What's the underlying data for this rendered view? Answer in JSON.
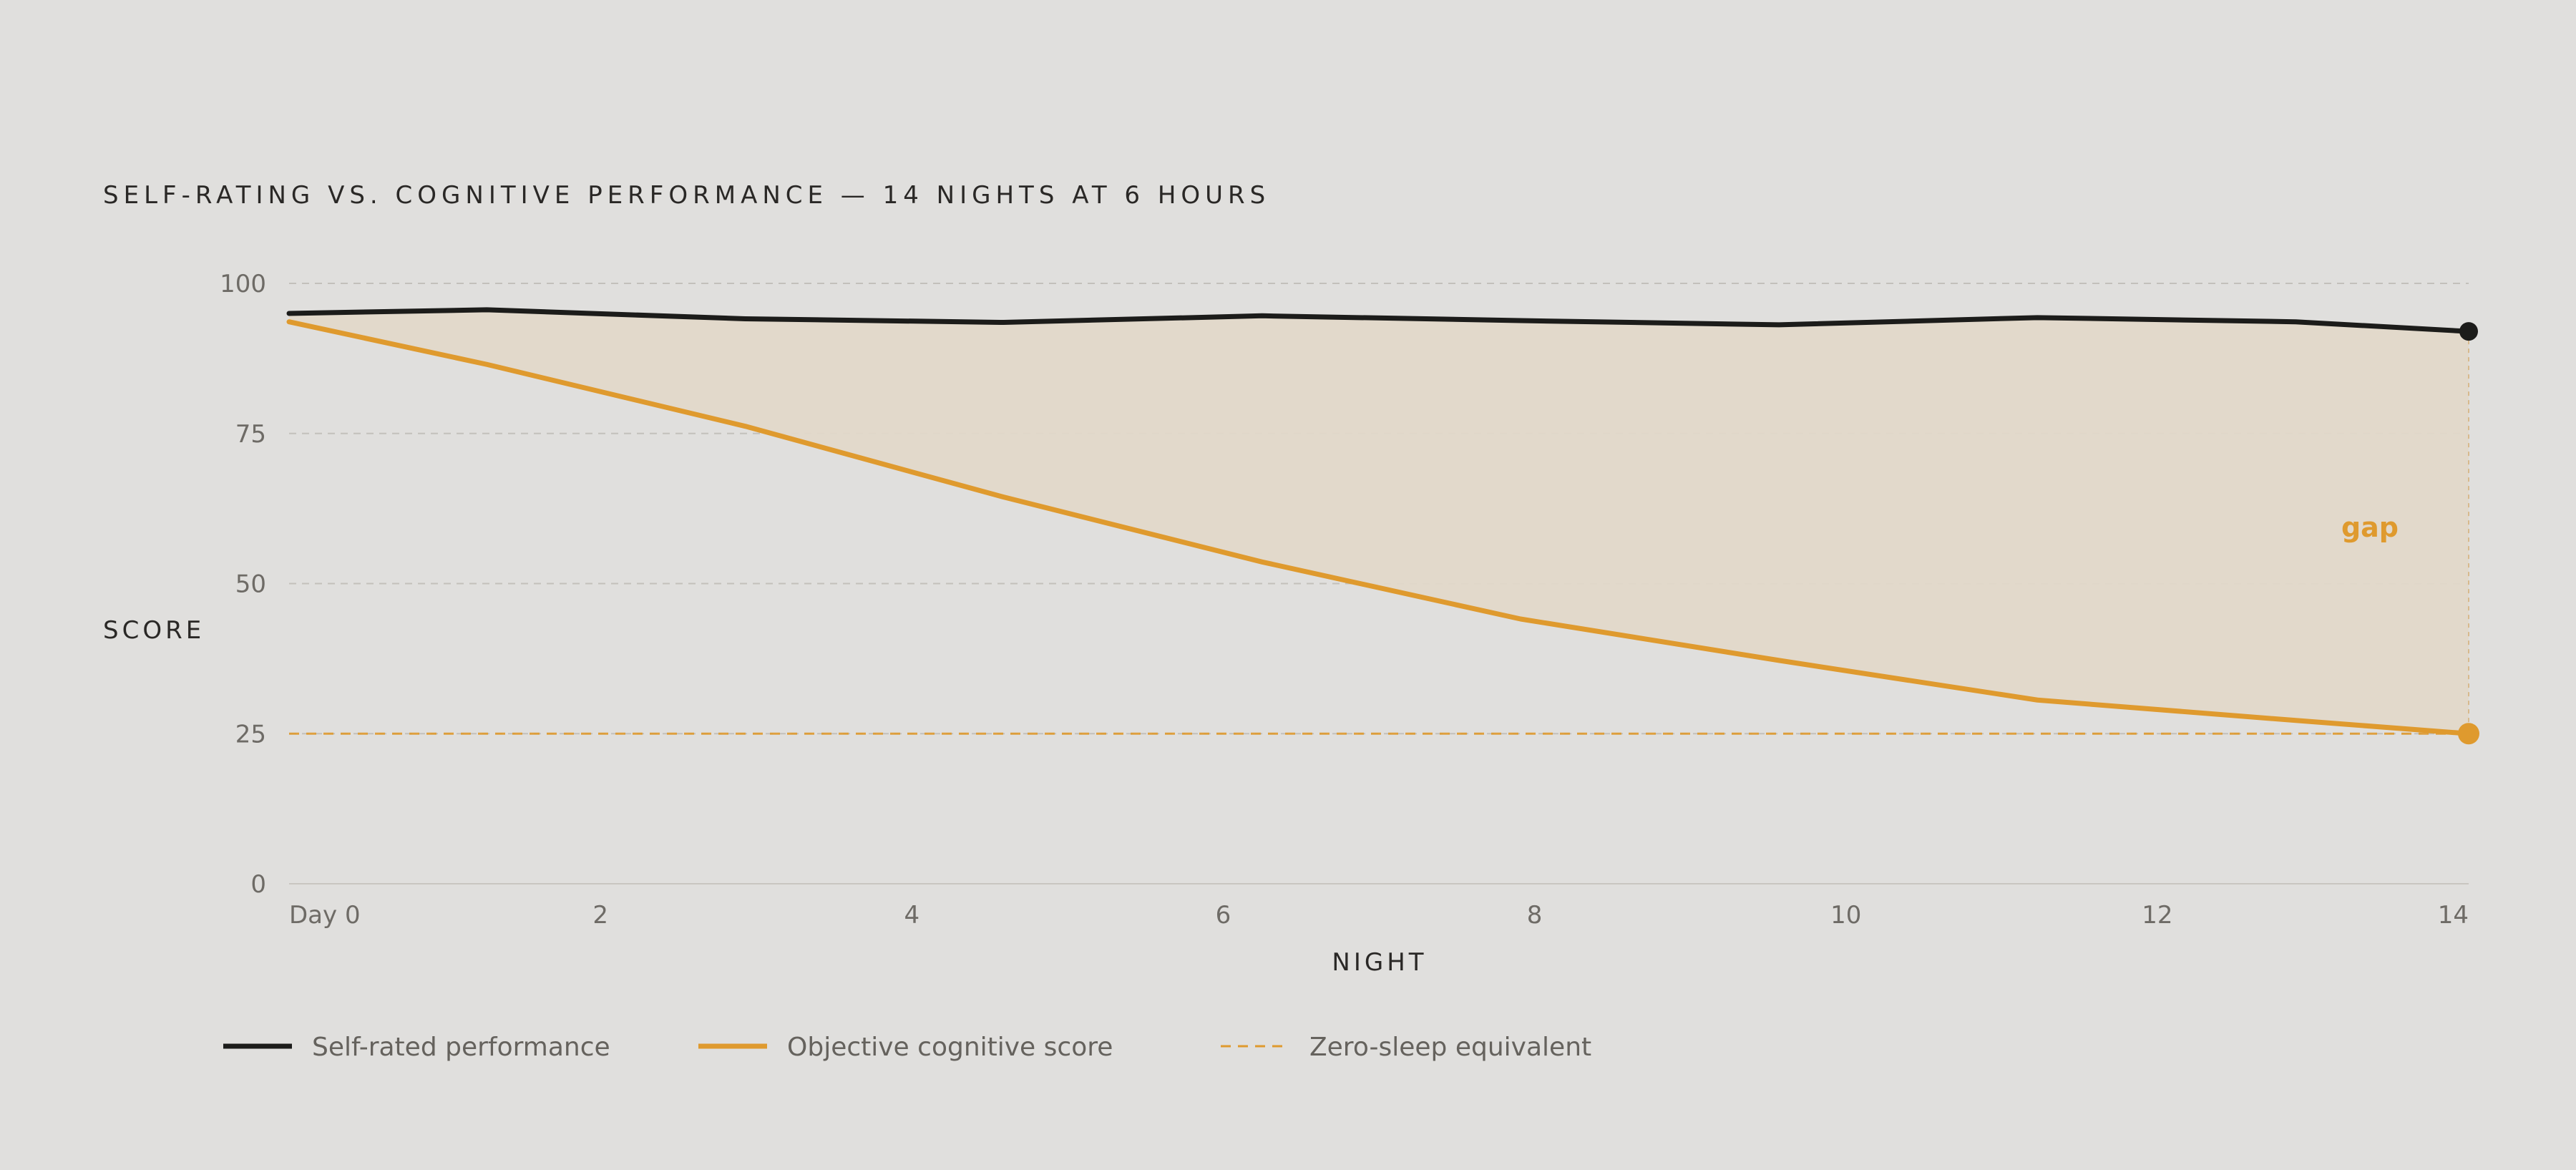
{
  "colors": {
    "background": "#e0dfdd",
    "self_rated": "#1c1c1a",
    "objective": "#df9a2e",
    "gap_fill": "#e2d8c9",
    "grid": "#c3c0bb",
    "tick_text": "#6e6b66",
    "label_text": "#2a2826",
    "legend_text": "#65625d"
  },
  "chart_data": {
    "type": "line",
    "title": "SELF-RATING VS. COGNITIVE PERFORMANCE — 14 NIGHTS AT 6 HOURS",
    "xlabel": "NIGHT",
    "ylabel": "SCORE",
    "xlim": [
      0,
      14
    ],
    "ylim": [
      0,
      100
    ],
    "x_ticks": [
      {
        "value": 0,
        "label": "Day 0"
      },
      {
        "value": 2,
        "label": "2"
      },
      {
        "value": 4,
        "label": "4"
      },
      {
        "value": 6,
        "label": "6"
      },
      {
        "value": 8,
        "label": "8"
      },
      {
        "value": 10,
        "label": "10"
      },
      {
        "value": 12,
        "label": "12"
      },
      {
        "value": 14,
        "label": "14"
      }
    ],
    "y_ticks": [
      {
        "value": 0,
        "label": "0"
      },
      {
        "value": 25,
        "label": "25"
      },
      {
        "value": 50,
        "label": "50"
      },
      {
        "value": 75,
        "label": "75"
      },
      {
        "value": 100,
        "label": "100"
      }
    ],
    "grid": true,
    "series": [
      {
        "name": "Self-rated performance",
        "x": [
          0,
          1.27,
          2.93,
          4.59,
          6.25,
          7.91,
          9.57,
          11.23,
          12.89,
          14
        ],
        "values": [
          95,
          95.6,
          94.1,
          93.5,
          94.6,
          93.8,
          93.1,
          94.3,
          93.6,
          92
        ]
      },
      {
        "name": "Objective cognitive score",
        "x": [
          0,
          1.27,
          2.93,
          4.59,
          6.25,
          7.91,
          9.57,
          11.23,
          12.89,
          14
        ],
        "values": [
          93.6,
          86.5,
          76.2,
          64.4,
          53.6,
          44.1,
          37.2,
          30.6,
          27.2,
          25
        ]
      }
    ],
    "reference_line": {
      "name": "Zero-sleep equivalent",
      "value": 25
    },
    "annotation": {
      "label": "gap"
    },
    "legend": {
      "placement": "bottom-left",
      "items": [
        {
          "label": "Self-rated performance",
          "style": "solid",
          "color": "#1c1c1a"
        },
        {
          "label": "Objective cognitive score",
          "style": "solid",
          "color": "#df9a2e"
        },
        {
          "label": "Zero-sleep equivalent",
          "style": "dashed",
          "color": "#df9a2e"
        }
      ]
    }
  }
}
